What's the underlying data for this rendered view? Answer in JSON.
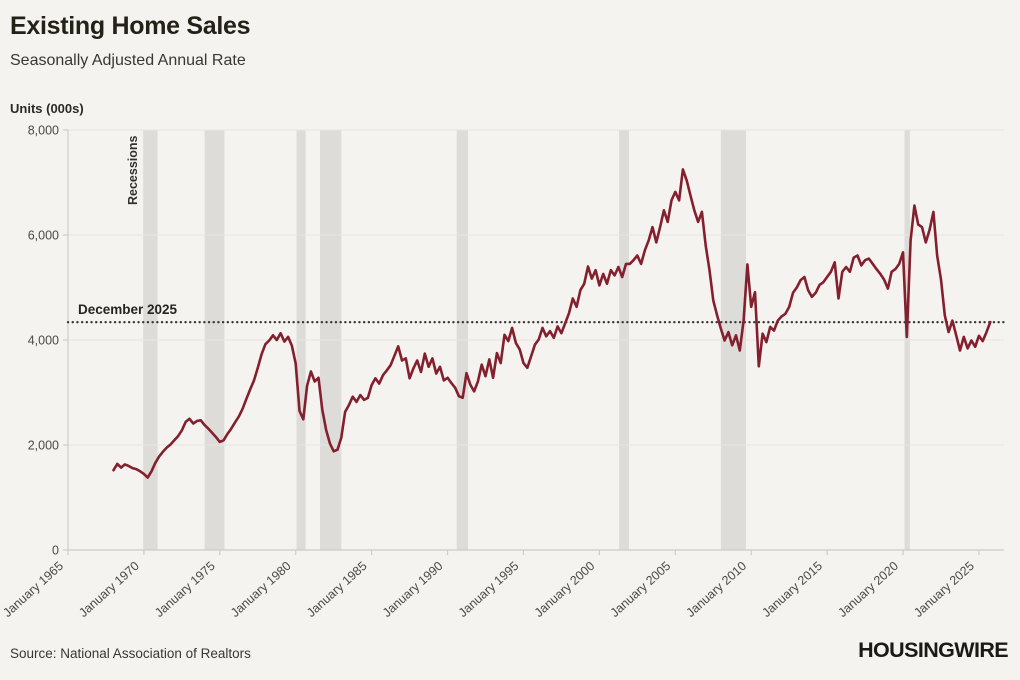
{
  "header": {
    "title": "Existing Home Sales",
    "subtitle": "Seasonally Adjusted Annual Rate"
  },
  "footer": {
    "source": "Source: National Association of Realtors",
    "brand": "HOUSINGWIRE"
  },
  "colors": {
    "background": "#f5f3ef",
    "line": "#841f2e",
    "recession_band": "#dedcd8",
    "gridline": "#e8e6e1",
    "axis": "#cfccc6",
    "tick_text": "#4c4944",
    "reference_line": "#3a3835"
  },
  "chart_data": {
    "type": "line",
    "title": "Existing Home Sales",
    "subtitle": "Seasonally Adjusted Annual Rate",
    "ylabel": "Units (000s)",
    "xlabel": "",
    "grid": "horizontal",
    "legend": "none",
    "xlim": [
      1965,
      2026.65
    ],
    "ylim": [
      0,
      8000
    ],
    "y_ticks": [
      0,
      2000,
      4000,
      6000,
      8000
    ],
    "y_tick_labels": [
      "0",
      "2,000",
      "4,000",
      "6,000",
      "8,000"
    ],
    "x_tick_years": [
      1965,
      1970,
      1975,
      1980,
      1985,
      1990,
      1995,
      2000,
      2005,
      2010,
      2015,
      2020,
      2025
    ],
    "x_tick_labels": [
      "January 1965",
      "January 1970",
      "January 1975",
      "January 1980",
      "January 1985",
      "January 1990",
      "January 1995",
      "January 2000",
      "January 2005",
      "January 2010",
      "January 2015",
      "January 2020",
      "January 2025"
    ],
    "recessions_label": "Recessions",
    "recessions": [
      [
        1969.95,
        1970.9
      ],
      [
        1974.0,
        1975.3
      ],
      [
        1980.05,
        1980.65
      ],
      [
        1981.6,
        1983.0
      ],
      [
        1990.6,
        1991.35
      ],
      [
        2001.3,
        2001.95
      ],
      [
        2008.0,
        2009.65
      ],
      [
        2020.1,
        2020.45
      ]
    ],
    "reference_line": {
      "label": "December 2025",
      "value": 4340
    },
    "series": [
      {
        "name": "Existing Home Sales (SAAR, 000s)",
        "start_year": 1968.0,
        "step_years": 0.25,
        "values": [
          1520,
          1640,
          1570,
          1630,
          1600,
          1560,
          1540,
          1500,
          1450,
          1380,
          1500,
          1660,
          1780,
          1870,
          1950,
          2010,
          2090,
          2170,
          2280,
          2440,
          2500,
          2410,
          2460,
          2470,
          2380,
          2310,
          2230,
          2150,
          2060,
          2090,
          2210,
          2310,
          2430,
          2540,
          2690,
          2880,
          3060,
          3230,
          3470,
          3730,
          3920,
          3990,
          4090,
          4000,
          4130,
          3970,
          4060,
          3890,
          3550,
          2650,
          2490,
          3130,
          3400,
          3210,
          3280,
          2670,
          2290,
          2030,
          1880,
          1910,
          2140,
          2630,
          2760,
          2920,
          2820,
          2950,
          2860,
          2900,
          3140,
          3270,
          3170,
          3330,
          3420,
          3520,
          3700,
          3880,
          3610,
          3650,
          3270,
          3460,
          3610,
          3390,
          3740,
          3490,
          3650,
          3360,
          3490,
          3230,
          3280,
          3180,
          3090,
          2930,
          2900,
          3370,
          3150,
          3020,
          3210,
          3530,
          3310,
          3630,
          3280,
          3750,
          3560,
          4100,
          3980,
          4230,
          3940,
          3820,
          3560,
          3470,
          3690,
          3910,
          4010,
          4230,
          4070,
          4170,
          4040,
          4260,
          4130,
          4320,
          4510,
          4790,
          4630,
          4950,
          5070,
          5400,
          5170,
          5330,
          5040,
          5260,
          5070,
          5330,
          5230,
          5390,
          5200,
          5450,
          5450,
          5520,
          5610,
          5450,
          5710,
          5900,
          6150,
          5860,
          6150,
          6470,
          6250,
          6660,
          6820,
          6660,
          7250,
          7040,
          6750,
          6470,
          6250,
          6440,
          5800,
          5330,
          4750,
          4470,
          4220,
          3990,
          4150,
          3900,
          4090,
          3800,
          4370,
          5440,
          4630,
          4910,
          3500,
          4120,
          3960,
          4250,
          4180,
          4370,
          4450,
          4500,
          4630,
          4900,
          5000,
          5140,
          5200,
          4950,
          4820,
          4900,
          5050,
          5100,
          5200,
          5300,
          5480,
          4790,
          5300,
          5390,
          5300,
          5570,
          5610,
          5420,
          5520,
          5550,
          5450,
          5350,
          5260,
          5150,
          4980,
          5300,
          5350,
          5450,
          5670,
          4060,
          5900,
          6560,
          6200,
          6150,
          5860,
          6100,
          6440,
          5600,
          5150,
          4470,
          4150,
          4370,
          4090,
          3800,
          4060,
          3840,
          3990,
          3870,
          4080,
          3980,
          4150,
          4340
        ]
      }
    ]
  }
}
